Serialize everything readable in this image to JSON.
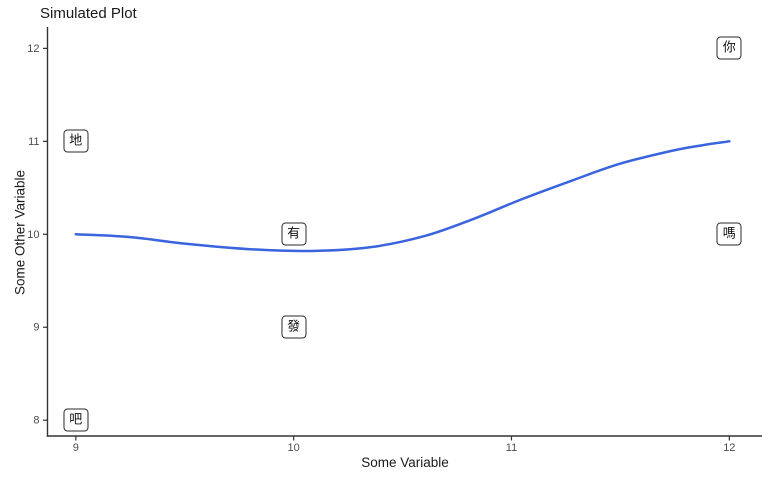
{
  "chart_data": {
    "type": "line",
    "title": "Simulated Plot",
    "xlabel": "Some Variable",
    "ylabel": "Some Other Variable",
    "x_ticks": [
      9,
      10,
      11,
      12
    ],
    "y_ticks": [
      8,
      9,
      10,
      11,
      12
    ],
    "xlim": [
      8.87,
      12.15
    ],
    "ylim": [
      7.83,
      12.23
    ],
    "grid": false,
    "legend": false,
    "series": [
      {
        "name": "smooth-line",
        "color": "#3a63de",
        "x": [
          9.0,
          9.25,
          9.5,
          9.8,
          10.08,
          10.35,
          10.6,
          10.82,
          11.05,
          11.28,
          11.5,
          11.74,
          11.88,
          12.0
        ],
        "y": [
          10.0,
          9.97,
          9.9,
          9.84,
          9.82,
          9.86,
          9.98,
          10.16,
          10.38,
          10.58,
          10.76,
          10.9,
          10.96,
          11.0
        ]
      }
    ],
    "point_labels": [
      {
        "text": "地",
        "x": 9,
        "y": 11
      },
      {
        "text": "吧",
        "x": 9,
        "y": 8
      },
      {
        "text": "有",
        "x": 10,
        "y": 10
      },
      {
        "text": "發",
        "x": 10,
        "y": 9
      },
      {
        "text": "你",
        "x": 12,
        "y": 12
      },
      {
        "text": "嗎",
        "x": 12,
        "y": 10
      }
    ],
    "colors": {
      "line": "#3a63de",
      "axis": "#333333",
      "tick_label": "#4d4d4d",
      "title_text": "#1a1a1a",
      "label_border": "#2a2a2a",
      "label_bg": "#ffffff"
    }
  }
}
